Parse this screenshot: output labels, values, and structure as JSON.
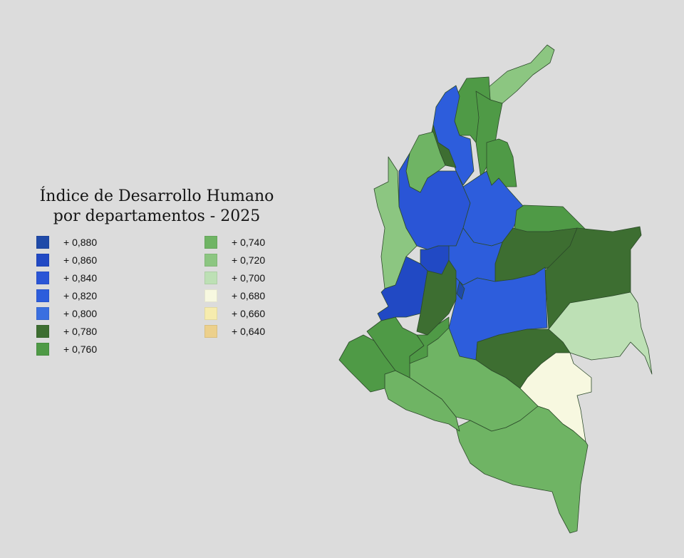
{
  "title": {
    "line1": "Índice de Desarrollo Humano",
    "line2": "por departamentos - 2025"
  },
  "legend": [
    {
      "label": "+ 0,880",
      "color": "#1f4aa8"
    },
    {
      "label": "+ 0,860",
      "color": "#2149c4"
    },
    {
      "label": "+ 0,840",
      "color": "#2a55d6"
    },
    {
      "label": "+ 0,820",
      "color": "#2d5ddc"
    },
    {
      "label": "+ 0,800",
      "color": "#3a6fe0"
    },
    {
      "label": "+ 0,780",
      "color": "#3d6e31"
    },
    {
      "label": "+ 0,760",
      "color": "#4f9a46"
    },
    {
      "label": "+ 0,740",
      "color": "#6fb464"
    },
    {
      "label": "+ 0,720",
      "color": "#8cc681"
    },
    {
      "label": "+ 0,700",
      "color": "#bde0b5"
    },
    {
      "label": "+ 0,680",
      "color": "#f7f8e0"
    },
    {
      "label": "+ 0,660",
      "color": "#f6ecae"
    },
    {
      "label": "+ 0,640",
      "color": "#ecd08c"
    }
  ]
}
